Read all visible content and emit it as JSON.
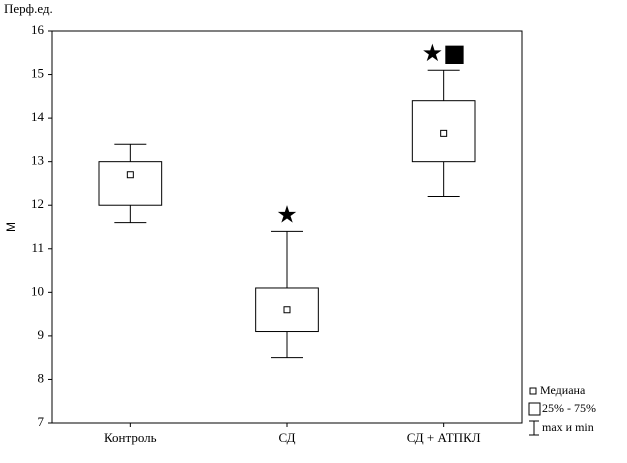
{
  "chart_data": {
    "type": "box",
    "unit_label": "Перф.ед.",
    "y_label": "M",
    "categories": [
      "Контроль",
      "СД",
      "СД + АТПКЛ"
    ],
    "boxes": [
      {
        "min": 11.6,
        "q1": 12,
        "median": 12.7,
        "q3": 13,
        "max": 13.4
      },
      {
        "min": 8.5,
        "q1": 9.1,
        "median": 9.6,
        "q3": 10.1,
        "max": 11.4
      },
      {
        "min": 12.2,
        "q1": 13,
        "median": 13.65,
        "q3": 14.4,
        "max": 15.1
      }
    ],
    "annotations": [
      null,
      "★",
      "★■"
    ],
    "ylim": [
      7,
      16
    ],
    "yticks": [
      7,
      8,
      9,
      10,
      11,
      12,
      13,
      14,
      15,
      16
    ],
    "legend": [
      "Медиана",
      "25% - 75%",
      "max и min"
    ],
    "color": "#000000"
  }
}
